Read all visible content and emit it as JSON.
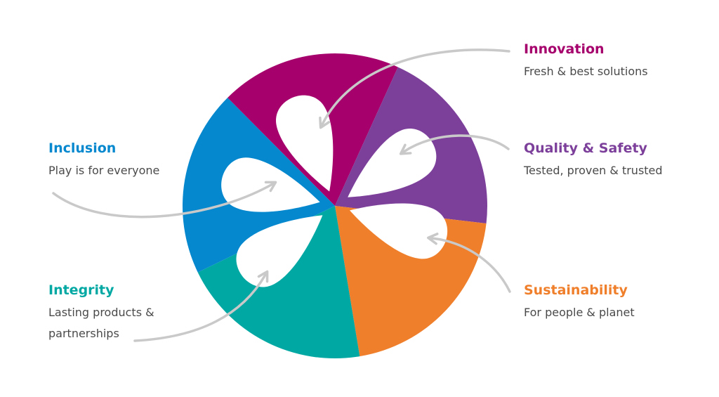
{
  "values": [
    {
      "title": "Innovation",
      "lines": [
        "Fresh & best solutions"
      ],
      "color": "#a5006c"
    },
    {
      "title": "Quality & Safety",
      "lines": [
        "Tested, proven & trusted"
      ],
      "color": "#7c409b"
    },
    {
      "title": "Sustainability",
      "lines": [
        "For people & planet"
      ],
      "color": "#f07f2b"
    },
    {
      "title": "Integrity",
      "lines": [
        "Lasting products &",
        "partnerships"
      ],
      "color": "#00a8a3"
    },
    {
      "title": "Inclusion",
      "lines": [
        "Play is for everyone"
      ],
      "color": "#0688cf"
    }
  ]
}
